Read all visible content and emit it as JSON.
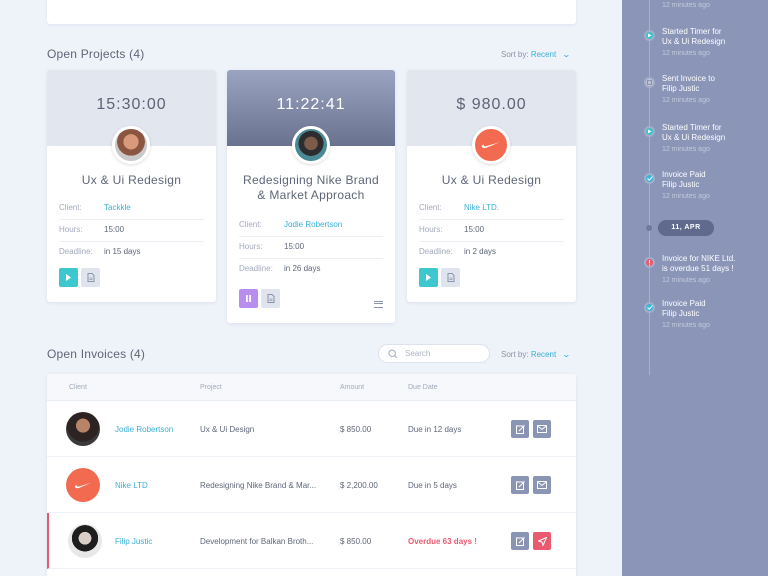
{
  "projects_section": {
    "title": "Open Projects (4)",
    "sort_label": "Sort by:",
    "sort_value": "Recent"
  },
  "projects": [
    {
      "timer": "15:30:00",
      "title": "Ux & Ui Redesign",
      "fields": [
        {
          "label": "Client:",
          "value": "Tackkle"
        },
        {
          "label": "Hours:",
          "value": "15:00"
        },
        {
          "label": "Deadline:",
          "value": "in 15 days"
        }
      ]
    },
    {
      "timer": "11:22:41",
      "title_line1": "Redesigning Nike Brand",
      "title_line2": "& Market Approach",
      "fields": [
        {
          "label": "Client:",
          "value": "Jodie Robertson"
        },
        {
          "label": "Hours:",
          "value": "15:00"
        },
        {
          "label": "Deadline:",
          "value": "in 26 days"
        }
      ]
    },
    {
      "timer": "$ 980.00",
      "title": "Ux & Ui Redesign",
      "fields": [
        {
          "label": "Client:",
          "value": "Nike LTD."
        },
        {
          "label": "Hours:",
          "value": "15:00"
        },
        {
          "label": "Deadline:",
          "value": "in 2 days"
        }
      ]
    }
  ],
  "invoices_section": {
    "title": "Open Invoices (4)",
    "search_placeholder": "Search",
    "sort_label": "Sort by:",
    "sort_value": "Recent"
  },
  "invoice_table": {
    "headers": [
      "Client",
      "Project",
      "Amount",
      "Due Date"
    ],
    "rows": [
      {
        "client": "Jodie Robertson",
        "project": "Ux & Ui Design",
        "amount": "$ 850.00",
        "due": "Due in 12 days"
      },
      {
        "client": "Nike LTD",
        "project": "Redesigning Nike Brand & Mar...",
        "amount": "$ 2,200.00",
        "due": "Due in 5 days"
      },
      {
        "client": "Filip Justic",
        "project": "Development for Balkan Broth...",
        "amount": "$ 850.00",
        "due": "Overdue 63 days !"
      }
    ]
  },
  "timeline": {
    "top_time": "12 minutes ago",
    "items": [
      {
        "line1": "Started Timer for",
        "line2": "Ux & Ui Redesign",
        "time": "12 minutes ago"
      },
      {
        "line1": "Sent Invoice to",
        "line2": "Filip Justic",
        "time": "12 minutes ago"
      },
      {
        "line1": "Started Timer for",
        "line2": "Ux & Ui Redesign",
        "time": "12 minutes ago"
      },
      {
        "line1": "Invoice Paid",
        "line2": "Filip Justic",
        "time": "12 minutes ago"
      },
      {
        "line1": "Invoice for NIKE Ltd.",
        "line2": "is overdue 51 days !",
        "time": "12 minutes ago"
      },
      {
        "line1": "Invoice Paid",
        "line2": "Filip Justic",
        "time": "12 minutes ago"
      }
    ],
    "date_label": "11, APR"
  },
  "colors": {
    "accent": "#3ab0d8",
    "teal": "#3dc7cf",
    "purple": "#b88ef0",
    "danger": "#ea5a6f",
    "nike": "#f26a50",
    "sidebar": "#8a95b8"
  }
}
